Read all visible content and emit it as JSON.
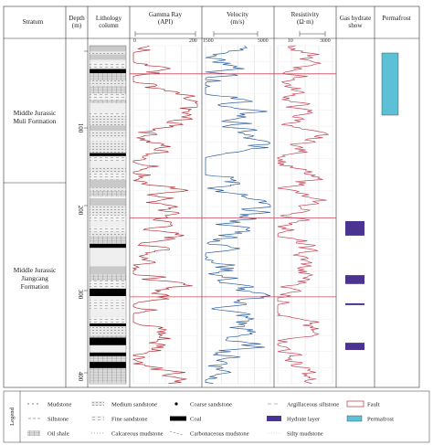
{
  "header": {
    "stratum": "Stratum",
    "depth": [
      "Depth",
      "(m)"
    ],
    "lithology": [
      "Lithology",
      "column"
    ],
    "gamma": [
      "Gamma Ray",
      "(API)"
    ],
    "velocity": [
      "Velocity",
      "(m/s)"
    ],
    "resistivity": [
      "Resistivity",
      "(Ω·m)"
    ],
    "hydrate": [
      "Gas hydrate",
      "show"
    ],
    "permafrost": "Permafrost"
  },
  "scales": {
    "gamma": {
      "min": "0",
      "max": "200"
    },
    "velocity": {
      "min": "1500",
      "max": "5000"
    },
    "resistivity": {
      "min": "10",
      "max": "3000"
    }
  },
  "depth_ticks": [
    "100",
    "200",
    "300",
    "400"
  ],
  "strata": [
    {
      "lines": [
        "Middle Jurassic",
        "Muli Formation"
      ]
    },
    {
      "lines": [
        "Middle Jurassic",
        "Jiangcang",
        "Formation"
      ]
    }
  ],
  "log_track": {
    "depth_range_m": [
      0,
      420
    ],
    "fault_depths_m": [
      35,
      214,
      312
    ],
    "gamma_api_range": [
      0,
      200
    ],
    "velocity_ms_range": [
      1500,
      5000
    ],
    "resistivity_ohmm_range": [
      10,
      3000
    ],
    "hydrate_layers_m": [
      [
        218,
        236
      ],
      [
        285,
        296
      ],
      [
        320,
        322
      ],
      [
        369,
        378
      ]
    ],
    "permafrost_m": [
      0,
      80
    ]
  },
  "legend": {
    "title": "Legend",
    "items": [
      {
        "label": "Mudstone",
        "pattern": "mudstone"
      },
      {
        "label": "Medium sandstone",
        "pattern": "medium-sandstone"
      },
      {
        "label": "Coarse sandstone",
        "pattern": "coarse-sandstone"
      },
      {
        "label": "Argillaceous siltstone",
        "pattern": "argillaceous-siltstone"
      },
      {
        "label": "Fault",
        "pattern": "fault"
      },
      {
        "label": "Siltstone",
        "pattern": "siltstone"
      },
      {
        "label": "Fine sandstone",
        "pattern": "fine-sandstone"
      },
      {
        "label": "Coal",
        "pattern": "coal"
      },
      {
        "label": "Hydrate layer",
        "pattern": "hydrate"
      },
      {
        "label": "Permafrost",
        "pattern": "permafrost"
      },
      {
        "label": "Oil shale",
        "pattern": "oil-shale"
      },
      {
        "label": "Calcareous mudstone",
        "pattern": "calcareous-mudstone"
      },
      {
        "label": "Carbonaceous mudstone",
        "pattern": "carbonaceous-mudstone"
      },
      {
        "label": "Silty mudstone",
        "pattern": "silty-mudstone"
      }
    ]
  },
  "colors": {
    "gamma": "#b0363c",
    "velocity": "#2e5f9e",
    "resistivity": "#c4485a",
    "fault": "#c4485a",
    "hydrate": "#4b3391",
    "permafrost": "#5cc0d6",
    "coal": "#000000"
  }
}
